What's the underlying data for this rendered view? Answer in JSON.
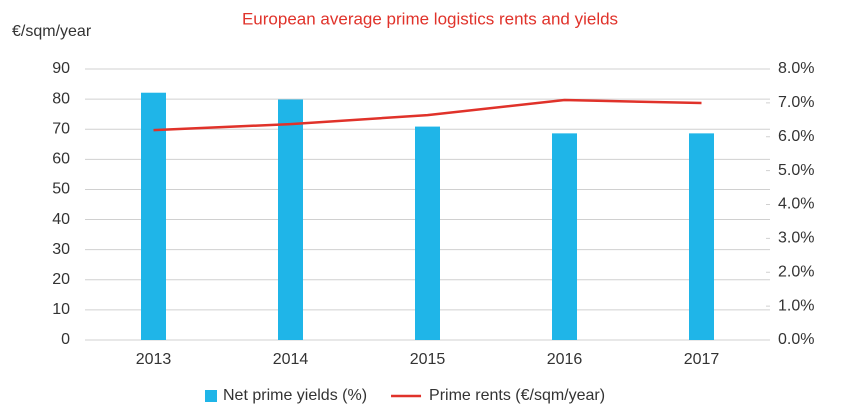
{
  "chart_data": {
    "type": "combo",
    "title": "European average prime logistics rents and yields",
    "ylabel": "€/sqm/year",
    "categories": [
      "2013",
      "2014",
      "2015",
      "2016",
      "2017"
    ],
    "series": [
      {
        "name": "Net prime yields (%)",
        "type": "bar",
        "axis": "y2",
        "color": "#1fb5e8",
        "values": [
          7.3,
          7.1,
          6.3,
          6.1,
          6.1
        ]
      },
      {
        "name": "Prime rents (€/sqm/year)",
        "type": "line",
        "axis": "y",
        "color": "#e0322a",
        "values": [
          69.7,
          71.7,
          74.7,
          79.7,
          78.7
        ]
      }
    ],
    "ylim": [
      0,
      90
    ],
    "yticks": [
      0,
      10,
      20,
      30,
      40,
      50,
      60,
      70,
      80,
      90
    ],
    "y2lim": [
      0,
      8
    ],
    "y2ticks": [
      {
        "value": 0,
        "label": "0.0%"
      },
      {
        "value": 1,
        "label": "1.0%"
      },
      {
        "value": 2,
        "label": "2.0%"
      },
      {
        "value": 3,
        "label": "3.0%"
      },
      {
        "value": 4,
        "label": "4.0%"
      },
      {
        "value": 5,
        "label": "5.0%"
      },
      {
        "value": 6,
        "label": "6.0%"
      },
      {
        "value": 7,
        "label": "7.0%"
      },
      {
        "value": 8,
        "label": "8.0%"
      }
    ],
    "grid": true,
    "legend": "bottom"
  }
}
